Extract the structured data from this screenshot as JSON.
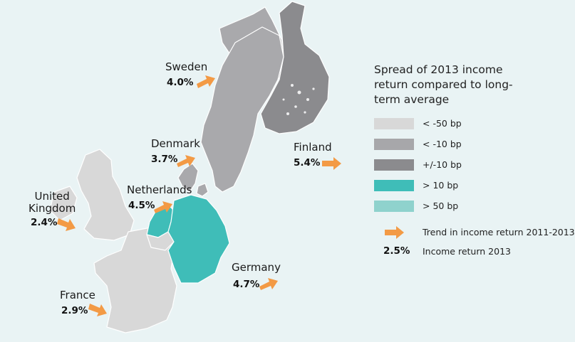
{
  "legend": {
    "title": "Spread of 2013 income return compared to long-term average",
    "items": [
      {
        "label": "< -50 bp",
        "color": "#d8d8d8"
      },
      {
        "label": "< -10 bp",
        "color": "#a7a7aa"
      },
      {
        "label": "+/-10 bp",
        "color": "#8b8b8e"
      },
      {
        "label": "> 10 bp",
        "color": "#3fbdb8"
      },
      {
        "label": "> 50 bp",
        "color": "#8fd2cd"
      }
    ],
    "trend_label": "Trend in income return 2011-2013",
    "sample_value": "2.5%",
    "income_label": "Income return 2013"
  },
  "countries": [
    {
      "key": "sweden",
      "name": "Sweden",
      "value": "4.0%",
      "category": "< -10 bp"
    },
    {
      "key": "denmark",
      "name": "Denmark",
      "value": "3.7%",
      "category": "< -10 bp"
    },
    {
      "key": "finland",
      "name": "Finland",
      "value": "5.4%",
      "category": "+/-10 bp"
    },
    {
      "key": "netherlands",
      "name": "Netherlands",
      "value": "4.5%",
      "category": "> 10 bp"
    },
    {
      "key": "united_kingdom",
      "name": "United\nKingdom",
      "value": "2.4%",
      "category": "< -50 bp"
    },
    {
      "key": "germany",
      "name": "Germany",
      "value": "4.7%",
      "category": "> 10 bp"
    },
    {
      "key": "france",
      "name": "France",
      "value": "2.9%",
      "category": "< -50 bp"
    }
  ],
  "colors": {
    "background": "#e9f3f4",
    "arrow": "#f39a45",
    "non_focus_land": "#d8d8d8"
  }
}
